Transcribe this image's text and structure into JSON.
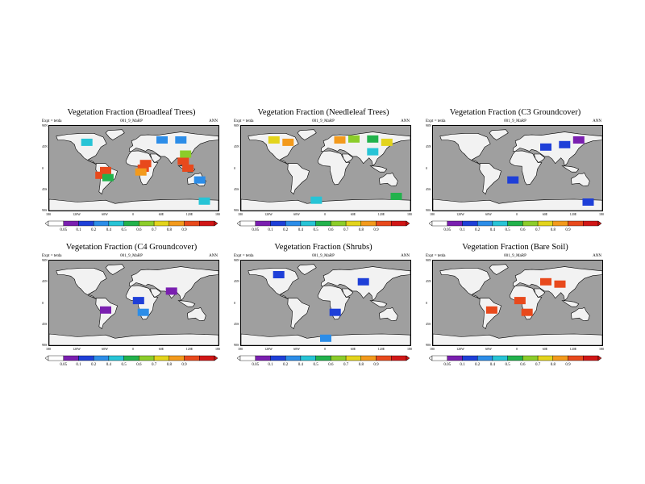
{
  "colors": {
    "ocean": "#9f9f9f",
    "land_empty": "#f2f2f2",
    "scale": [
      "#ffffff",
      "#7a1fb0",
      "#1e3fd8",
      "#2c8de8",
      "#27c4d6",
      "#22b24c",
      "#8ccd2a",
      "#e3d41c",
      "#f39a1c",
      "#e8491c",
      "#d11616"
    ]
  },
  "colorbar_labels": [
    "0.05",
    "0.1",
    "0.2",
    "0.4",
    "0.5",
    "0.6",
    "0.7",
    "0.8",
    "0.9"
  ],
  "lat_labels": [
    "90N",
    "45N",
    "0",
    "45S",
    "90S"
  ],
  "lon_labels": [
    "180",
    "120W",
    "60W",
    "0",
    "60E",
    "120E",
    "180"
  ],
  "chart_data": [
    {
      "type": "heatmap",
      "title": "Vegetation Fraction (Broadleaf Trees)",
      "expt_label": "Expt = tetda",
      "run_label": "001_9_MaRP",
      "period": "ANN",
      "value_range": [
        0,
        1
      ],
      "cells": [
        {
          "lon": -60,
          "lat": -5,
          "value": 0.92
        },
        {
          "lon": -70,
          "lat": -15,
          "value": 0.85
        },
        {
          "lon": -55,
          "lat": -20,
          "value": 0.45
        },
        {
          "lon": 20,
          "lat": 0,
          "value": 0.92
        },
        {
          "lon": 25,
          "lat": 10,
          "value": 0.88
        },
        {
          "lon": 15,
          "lat": -8,
          "value": 0.8
        },
        {
          "lon": 105,
          "lat": 15,
          "value": 0.85
        },
        {
          "lon": 110,
          "lat": 30,
          "value": 0.6
        },
        {
          "lon": 115,
          "lat": 0,
          "value": 0.9
        },
        {
          "lon": 140,
          "lat": -25,
          "value": 0.3
        },
        {
          "lon": -100,
          "lat": 55,
          "value": 0.35
        },
        {
          "lon": 60,
          "lat": 60,
          "value": 0.3
        },
        {
          "lon": 100,
          "lat": 60,
          "value": 0.25
        },
        {
          "lon": 150,
          "lat": -70,
          "value": 0.35
        }
      ]
    },
    {
      "type": "heatmap",
      "title": "Vegetation Fraction (Needleleaf Trees)",
      "expt_label": "Expt = tetda",
      "run_label": "001_9_MaRP",
      "period": "ANN",
      "value_range": [
        0,
        1
      ],
      "cells": [
        {
          "lon": -110,
          "lat": 60,
          "value": 0.7
        },
        {
          "lon": -80,
          "lat": 55,
          "value": 0.75
        },
        {
          "lon": 30,
          "lat": 60,
          "value": 0.75
        },
        {
          "lon": 60,
          "lat": 62,
          "value": 0.55
        },
        {
          "lon": 100,
          "lat": 62,
          "value": 0.5
        },
        {
          "lon": 130,
          "lat": 55,
          "value": 0.7
        },
        {
          "lon": 100,
          "lat": 35,
          "value": 0.35
        },
        {
          "lon": 150,
          "lat": -60,
          "value": 0.45
        },
        {
          "lon": -20,
          "lat": -68,
          "value": 0.4
        }
      ]
    },
    {
      "type": "heatmap",
      "title": "Vegetation Fraction (C3 Groundcover)",
      "expt_label": "Expt = tetda",
      "run_label": "001_9_MaRP",
      "period": "ANN",
      "value_range": [
        0,
        1
      ],
      "cells": [
        {
          "lon": 60,
          "lat": 45,
          "value": 0.2
        },
        {
          "lon": 100,
          "lat": 50,
          "value": 0.15
        },
        {
          "lon": 130,
          "lat": 60,
          "value": 0.1
        },
        {
          "lon": -10,
          "lat": -25,
          "value": 0.2
        },
        {
          "lon": 150,
          "lat": -72,
          "value": 0.15
        }
      ]
    },
    {
      "type": "heatmap",
      "title": "Vegetation Fraction (C4 Groundcover)",
      "expt_label": "Expt = tetda",
      "run_label": "001_9_MaRP",
      "period": "ANN",
      "value_range": [
        0,
        1
      ],
      "cells": [
        {
          "lon": 10,
          "lat": 5,
          "value": 0.15
        },
        {
          "lon": -60,
          "lat": -15,
          "value": 0.1
        },
        {
          "lon": 20,
          "lat": -20,
          "value": 0.3
        },
        {
          "lon": 80,
          "lat": 25,
          "value": 0.1
        }
      ]
    },
    {
      "type": "heatmap",
      "title": "Vegetation Fraction (Shrubs)",
      "expt_label": "Expt = tetda",
      "run_label": "001_9_MaRP",
      "period": "ANN",
      "value_range": [
        0,
        1
      ],
      "cells": [
        {
          "lon": 80,
          "lat": 45,
          "value": 0.2
        },
        {
          "lon": -100,
          "lat": 60,
          "value": 0.15
        },
        {
          "lon": 20,
          "lat": -20,
          "value": 0.2
        },
        {
          "lon": 0,
          "lat": -75,
          "value": 0.3
        }
      ]
    },
    {
      "type": "heatmap",
      "title": "Vegetation Fraction (Bare Soil)",
      "expt_label": "Expt = tetda",
      "run_label": "001_9_MaRP",
      "period": "ANN",
      "value_range": [
        0,
        1
      ],
      "cells": [
        {
          "lon": 60,
          "lat": 45,
          "value": 0.92
        },
        {
          "lon": 90,
          "lat": 40,
          "value": 0.85
        },
        {
          "lon": 20,
          "lat": -20,
          "value": 0.92
        },
        {
          "lon": 5,
          "lat": 5,
          "value": 0.9
        },
        {
          "lon": -55,
          "lat": -15,
          "value": 0.85
        }
      ]
    }
  ]
}
